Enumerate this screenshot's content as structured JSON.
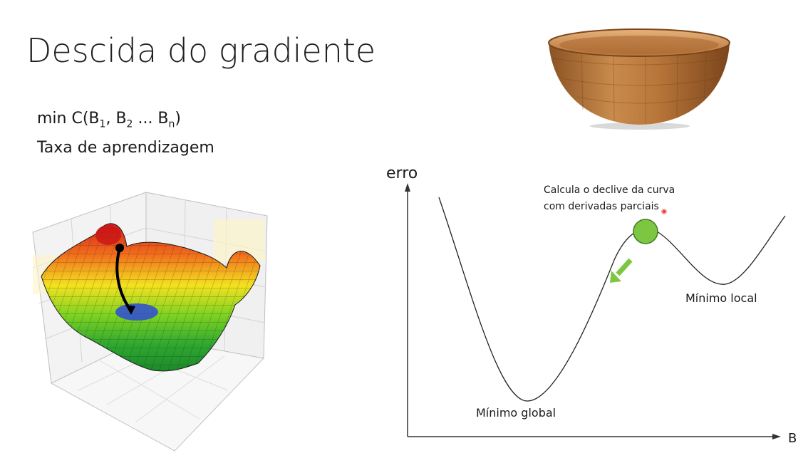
{
  "slide": {
    "title": "Descida do gradiente",
    "formula": {
      "prefix": "min C(B",
      "sub1": "1",
      "mid1": ", B",
      "sub2": "2",
      "mid2": " ... B",
      "subn": "n",
      "suffix": ")"
    },
    "bullet2": "Taxa de aprendizagem"
  },
  "graph": {
    "y_axis_label": "erro",
    "x_axis_label": "B",
    "annotation_line1": "Calcula o declive da curva",
    "annotation_line2": "com derivadas parciais",
    "global_min_label": "Mínimo global",
    "local_min_label": "Mínimo local"
  },
  "colors": {
    "ball": "#7dc642",
    "arrow": "#7dc642",
    "pointer": "#e23b3b",
    "bowl": "#b5793d"
  }
}
